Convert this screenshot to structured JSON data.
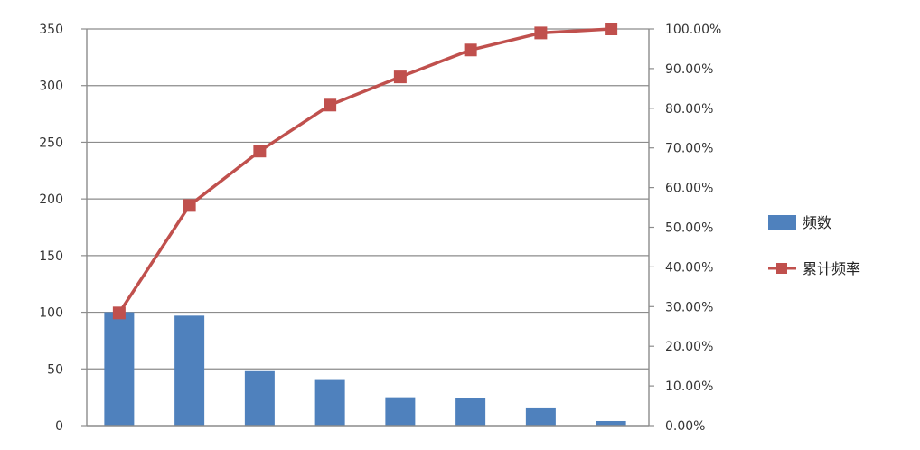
{
  "chart_data": {
    "type": "bar",
    "categories": [
      "",
      "",
      "",
      "",
      "",
      "",
      "",
      ""
    ],
    "series": [
      {
        "name": "频数",
        "chart_type": "bar",
        "axis": "left",
        "color": "#4f81bd",
        "values": [
          100,
          97,
          48,
          41,
          25,
          24,
          16,
          4
        ]
      },
      {
        "name": "累计频率",
        "chart_type": "line",
        "axis": "right",
        "color": "#c0504d",
        "marker": "square",
        "values": [
          28.4,
          55.5,
          69.2,
          80.8,
          87.9,
          94.7,
          99.0,
          100.0
        ]
      }
    ],
    "y_left": {
      "range": [
        0,
        350
      ],
      "ticks": [
        0,
        50,
        100,
        150,
        200,
        250,
        300,
        350
      ],
      "tick_labels": [
        "0",
        "50",
        "100",
        "150",
        "200",
        "250",
        "300",
        "350"
      ]
    },
    "y_right": {
      "range": [
        0,
        100
      ],
      "ticks": [
        0,
        10,
        20,
        30,
        40,
        50,
        60,
        70,
        80,
        90,
        100
      ],
      "tick_labels": [
        "0.00%",
        "10.00%",
        "20.00%",
        "30.00%",
        "40.00%",
        "50.00%",
        "60.00%",
        "70.00%",
        "80.00%",
        "90.00%",
        "100.00%"
      ]
    },
    "grid": true,
    "legend_position": "right"
  }
}
